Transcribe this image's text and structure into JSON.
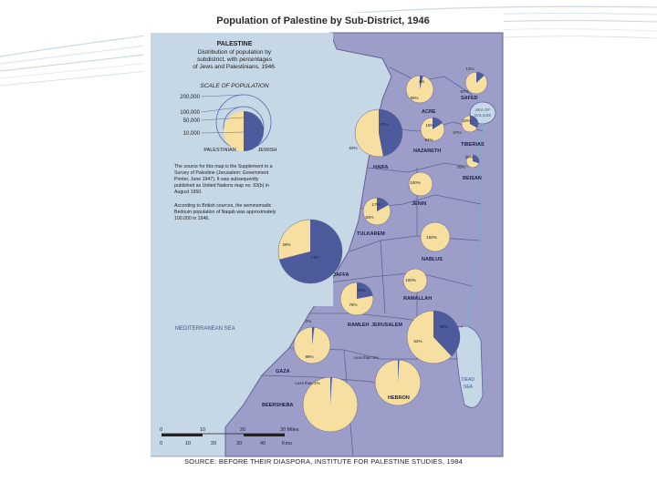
{
  "title": "Population of Palestine by Sub-District, 1946",
  "legend": {
    "heading": "PALESTINE",
    "lines": [
      "Distribution of population by",
      "subdistrict, with percentages",
      "of Jews and Palestinians, 1946."
    ],
    "scale_title": "SCALE OF POPULATION",
    "scale_values": [
      "200,000",
      "100,000",
      "50,000",
      "10,000"
    ],
    "palestinian_label": "PALESTINIAN",
    "jewish_label": "JEWISH"
  },
  "note1": [
    "The source for this map is the Supplement to a",
    "Survey of Palestine (Jerusalem: Government",
    "Printer, June 1947). It was subsequently",
    "published as United Nations map no. 93(b) in",
    "August 1950."
  ],
  "note2": [
    "According to British sources, the seminomadic",
    "Bedouin population of Naqab was approximately",
    "100,000 in 1946."
  ],
  "sea_labels": {
    "mediterranean": "MEDITERRANEAN SEA",
    "galilee": [
      "SEA OF",
      "GALILEE"
    ],
    "dead": [
      "DEAD",
      "SEA"
    ]
  },
  "scale_bar": {
    "miles": [
      "0",
      "10",
      "20",
      "30 Miles"
    ],
    "kms": [
      "0",
      "10",
      "20",
      "30",
      "40",
      "Kms"
    ]
  },
  "source": "SOURCE: BEFORE THEIR DIASPORA, INSTITUTE FOR PALESTINE STUDIES, 1984",
  "colors": {
    "palestinian": "#f6dfa0",
    "jewish": "#4d5a9c",
    "land": "#9c9ec9",
    "sea": "#c6d7e6"
  },
  "districts": [
    {
      "name": "SAFED",
      "palestinian_pct": 87,
      "jewish_pct": 13,
      "labels": [
        "13%",
        "87%"
      ]
    },
    {
      "name": "ACRE",
      "palestinian_pct": 96,
      "jewish_pct": 4,
      "labels": [
        "4%",
        "96%"
      ]
    },
    {
      "name": "TIBERIAS",
      "palestinian_pct": 67,
      "jewish_pct": 33,
      "labels": [
        "33%",
        "67%"
      ]
    },
    {
      "name": "HAIFA",
      "palestinian_pct": 53,
      "jewish_pct": 47,
      "labels": [
        "47%",
        "53%"
      ]
    },
    {
      "name": "NAZARETH",
      "palestinian_pct": 84,
      "jewish_pct": 16,
      "labels": [
        "16%",
        "84%"
      ]
    },
    {
      "name": "BEISAN",
      "palestinian_pct": 70,
      "jewish_pct": 30,
      "labels": [
        "30%",
        "70%"
      ]
    },
    {
      "name": "JENIN",
      "palestinian_pct": 100,
      "jewish_pct": 0,
      "labels": [
        "100%"
      ]
    },
    {
      "name": "TULKAREM",
      "palestinian_pct": 83,
      "jewish_pct": 17,
      "labels": [
        "17%",
        "83%"
      ]
    },
    {
      "name": "NABLUS",
      "palestinian_pct": 100,
      "jewish_pct": 0,
      "labels": [
        "100%"
      ]
    },
    {
      "name": "JAFFA",
      "palestinian_pct": 29,
      "jewish_pct": 71,
      "labels": [
        "29%",
        "71%"
      ]
    },
    {
      "name": "RAMALLAH",
      "palestinian_pct": 100,
      "jewish_pct": 0,
      "labels": [
        "100%"
      ]
    },
    {
      "name": "RAMLEH",
      "palestinian_pct": 78,
      "jewish_pct": 22,
      "labels": [
        "22%",
        "78%"
      ]
    },
    {
      "name": "JERUSALEM",
      "palestinian_pct": 62,
      "jewish_pct": 38,
      "labels": [
        "38%",
        "62%"
      ]
    },
    {
      "name": "GAZA",
      "palestinian_pct": 98,
      "jewish_pct": 2,
      "labels": [
        "2%",
        "98%"
      ]
    },
    {
      "name": "HEBRON",
      "palestinian_pct": 99,
      "jewish_pct": 1,
      "labels": [
        "Less than 1%"
      ]
    },
    {
      "name": "BEERSHEBA",
      "palestinian_pct": 99,
      "jewish_pct": 1,
      "labels": [
        "Less than 1%"
      ]
    }
  ]
}
